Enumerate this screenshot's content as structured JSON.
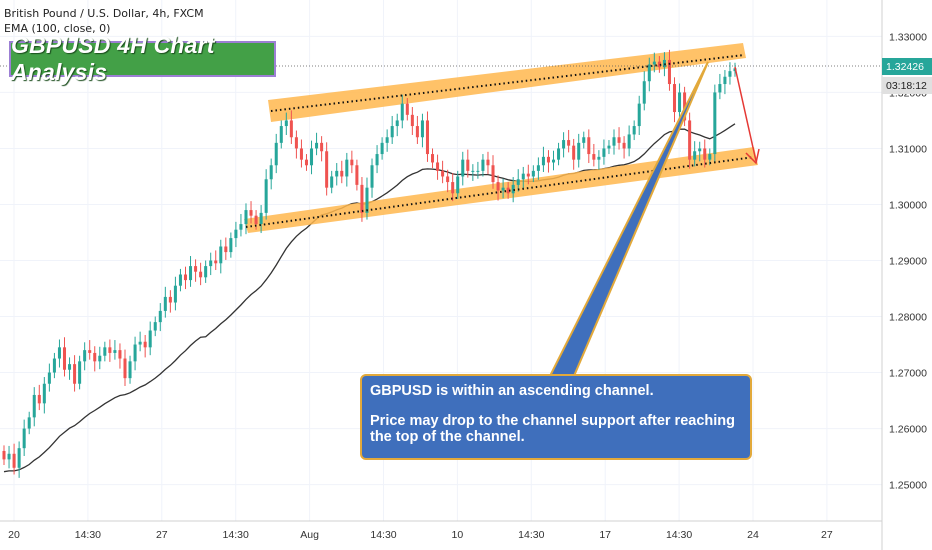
{
  "header": {
    "symbol_line": "British Pound / U.S. Dollar, 4h, FXCM",
    "indicator_line": "EMA (100, close, 0)"
  },
  "annotation_title": "GBPUSD 4H Chart Analysis",
  "callout": {
    "line1": "GBPUSD is within an ascending channel.",
    "line2": "Price may drop to the channel support after reaching the top of the channel."
  },
  "price_label": {
    "value": "1.32426",
    "countdown": "03:18:12"
  },
  "colors": {
    "up": "#26a69a",
    "down": "#ef5350",
    "channel": "#ffb74d",
    "ema": "#333333",
    "callout_bg": "#3f6fbc",
    "title_bg": "#43a047",
    "arrow": "#e53935"
  },
  "chart_data": {
    "type": "candlestick",
    "x_tick_labels": [
      "20",
      "14:30",
      "27",
      "14:30",
      "Aug",
      "14:30",
      "10",
      "14:30",
      "17",
      "14:30",
      "24",
      "27"
    ],
    "y_tick_labels": [
      "1.33000",
      "1.32000",
      "1.31000",
      "1.30000",
      "1.29000",
      "1.28000",
      "1.27000",
      "1.26000",
      "1.25000"
    ],
    "ylim": [
      1.2435,
      1.3365
    ],
    "current_price": 1.32426,
    "closes": [
      1.2545,
      1.2555,
      1.253,
      1.2565,
      1.26,
      1.262,
      1.266,
      1.2645,
      1.268,
      1.27,
      1.2725,
      1.2745,
      1.2705,
      1.2715,
      1.268,
      1.272,
      1.274,
      1.2735,
      1.272,
      1.273,
      1.2745,
      1.2735,
      1.274,
      1.2725,
      1.269,
      1.272,
      1.275,
      1.2755,
      1.2745,
      1.2775,
      1.279,
      1.281,
      1.2835,
      1.2825,
      1.2855,
      1.2875,
      1.2865,
      1.289,
      1.288,
      1.287,
      1.289,
      1.29,
      1.2895,
      1.2925,
      1.2915,
      1.294,
      1.2955,
      1.2965,
      1.299,
      1.298,
      1.2965,
      1.2985,
      1.3045,
      1.307,
      1.311,
      1.314,
      1.315,
      1.312,
      1.31,
      1.308,
      1.307,
      1.31,
      1.311,
      1.3095,
      1.303,
      1.305,
      1.306,
      1.305,
      1.308,
      1.307,
      1.3035,
      1.2985,
      1.303,
      1.307,
      1.309,
      1.311,
      1.312,
      1.314,
      1.315,
      1.318,
      1.316,
      1.314,
      1.312,
      1.315,
      1.309,
      1.3075,
      1.306,
      1.305,
      1.304,
      1.302,
      1.305,
      1.308,
      1.306,
      1.306,
      1.306,
      1.308,
      1.307,
      1.304,
      1.3025,
      1.303,
      1.302,
      1.3035,
      1.3045,
      1.3055,
      1.305,
      1.306,
      1.307,
      1.3085,
      1.3075,
      1.308,
      1.31,
      1.3115,
      1.3105,
      1.308,
      1.311,
      1.312,
      1.309,
      1.308,
      1.3085,
      1.31,
      1.3105,
      1.312,
      1.311,
      1.31,
      1.3125,
      1.314,
      1.318,
      1.322,
      1.325,
      1.3255,
      1.3245,
      1.3258,
      1.3215,
      1.3165,
      1.32,
      1.315,
      1.308,
      1.3095,
      1.31,
      1.308,
      1.309,
      1.32,
      1.3215,
      1.3228,
      1.3238,
      1.3243
    ]
  }
}
